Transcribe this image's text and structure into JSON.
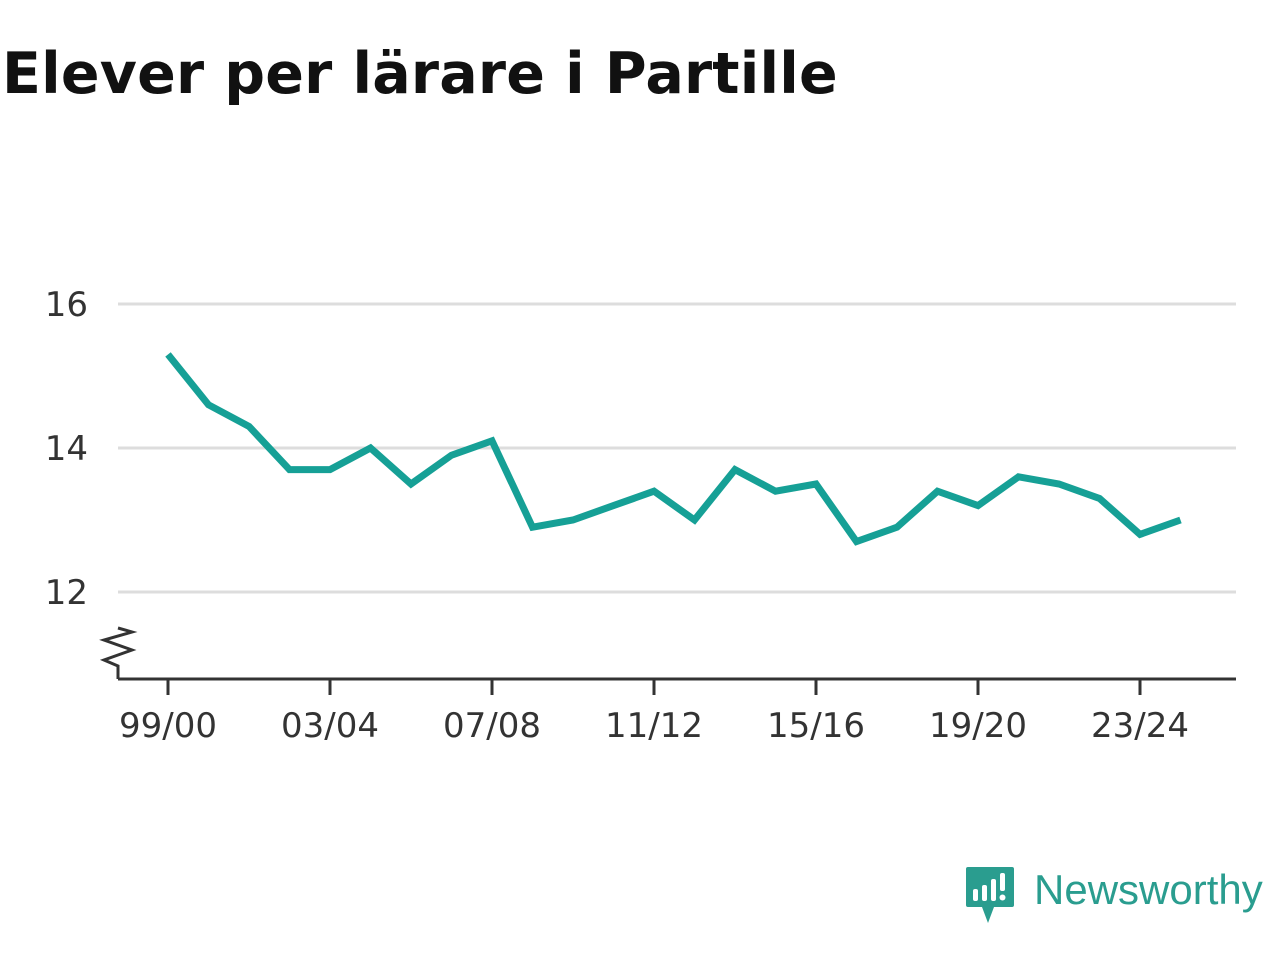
{
  "title": "Elever per lärare i Partille",
  "brand": {
    "name": "Newsworthy",
    "color": "#2a9d8f",
    "icon": "newsworthy-logo-icon"
  },
  "chart_data": {
    "type": "line",
    "title": "Elever per lärare i Partille",
    "xlabel": "",
    "ylabel": "",
    "x": [
      "99/00",
      "00/01",
      "01/02",
      "02/03",
      "03/04",
      "04/05",
      "05/06",
      "06/07",
      "07/08",
      "08/09",
      "09/10",
      "10/11",
      "11/12",
      "12/13",
      "13/14",
      "14/15",
      "15/16",
      "16/17",
      "17/18",
      "18/19",
      "19/20",
      "20/21",
      "21/22",
      "22/23",
      "23/24",
      "24/25"
    ],
    "series": [
      {
        "color": "#16a096",
        "values": [
          15.3,
          14.6,
          14.3,
          13.7,
          13.7,
          14.0,
          13.5,
          13.9,
          14.1,
          12.9,
          13.0,
          13.2,
          13.4,
          13.0,
          13.7,
          13.4,
          13.5,
          12.7,
          12.9,
          13.4,
          13.2,
          13.6,
          13.5,
          13.3,
          12.8,
          13.0
        ]
      }
    ],
    "x_tick_labels": [
      "99/00",
      "03/04",
      "07/08",
      "11/12",
      "15/16",
      "19/20",
      "23/24"
    ],
    "y_ticks": [
      12,
      14,
      16
    ],
    "ylim": [
      11,
      16
    ],
    "y_axis_break": true,
    "grid": true,
    "gridline_color": "#dddddd",
    "axis_color": "#333333"
  }
}
